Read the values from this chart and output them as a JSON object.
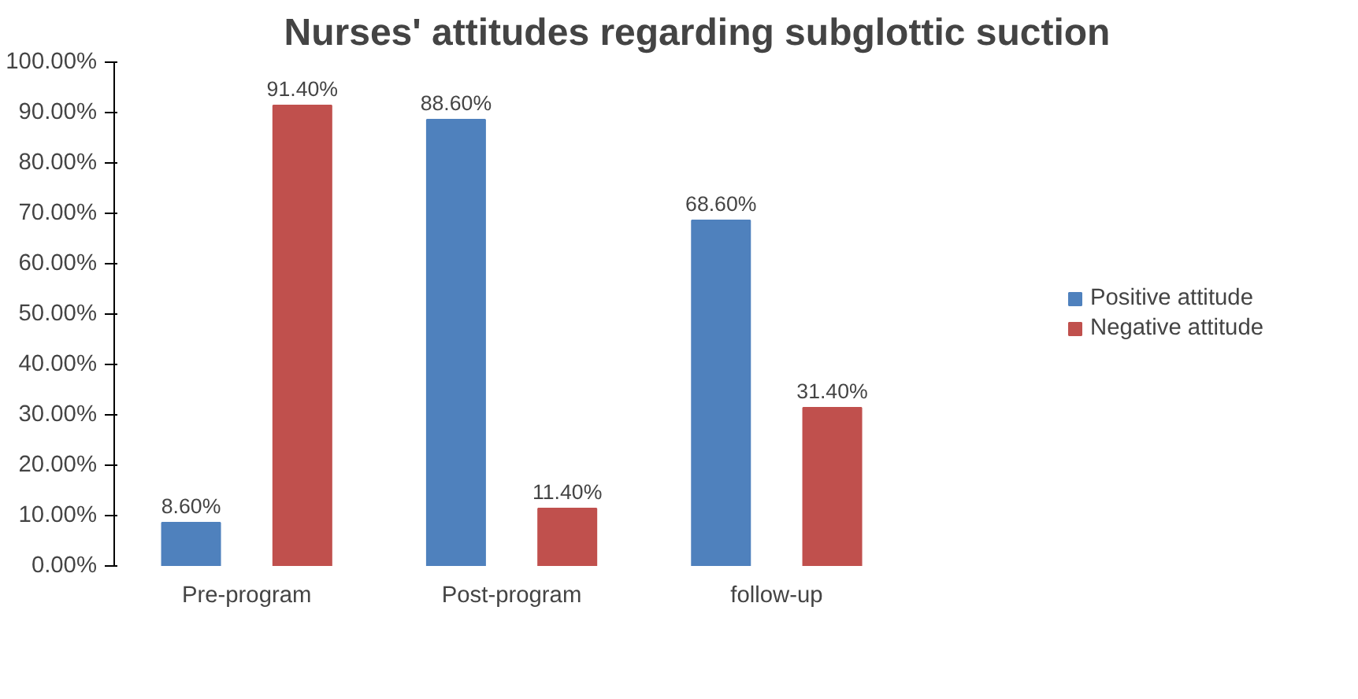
{
  "chart_data": {
    "type": "bar",
    "title": "Nurses' attitudes regarding subglottic suction",
    "categories": [
      "Pre-program",
      "Post-program",
      "follow-up"
    ],
    "series": [
      {
        "name": "Positive attitude",
        "color": "#4f81bd",
        "values": [
          8.6,
          88.6,
          68.6
        ],
        "value_labels": [
          "8.60%",
          "88.60%",
          "68.60%"
        ]
      },
      {
        "name": "Negative attitude",
        "color": "#c0504d",
        "values": [
          91.4,
          11.4,
          31.4
        ],
        "value_labels": [
          "91.40%",
          "11.40%",
          "31.40%"
        ]
      }
    ],
    "ylim": [
      0,
      100
    ],
    "yticks": [
      {
        "value": 0,
        "label": "0.00%"
      },
      {
        "value": 10,
        "label": "10.00%"
      },
      {
        "value": 20,
        "label": "20.00%"
      },
      {
        "value": 30,
        "label": "30.00%"
      },
      {
        "value": 40,
        "label": "40.00%"
      },
      {
        "value": 50,
        "label": "50.00%"
      },
      {
        "value": 60,
        "label": "60.00%"
      },
      {
        "value": 70,
        "label": "70.00%"
      },
      {
        "value": 80,
        "label": "80.00%"
      },
      {
        "value": 90,
        "label": "90.00%"
      },
      {
        "value": 100,
        "label": "100.00%"
      }
    ],
    "legend": "right",
    "grid": false
  }
}
